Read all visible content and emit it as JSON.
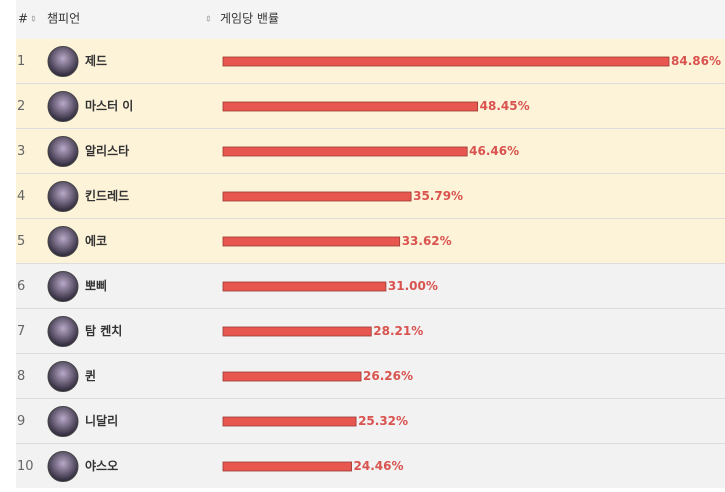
{
  "chart_data": {
    "type": "bar",
    "orientation": "horizontal",
    "headers": [
      "#",
      "챔피언",
      "게임당 밴률"
    ],
    "ranks": [
      1,
      2,
      3,
      4,
      5,
      6,
      7,
      8,
      9,
      10
    ],
    "categories": [
      "제드",
      "마스터 이",
      "알리스타",
      "킨드레드",
      "에코",
      "뽀삐",
      "탐 켄치",
      "퀸",
      "니달리",
      "야스오"
    ],
    "values": [
      84.86,
      48.45,
      46.46,
      35.79,
      33.62,
      31.0,
      28.21,
      26.26,
      25.32,
      24.46
    ],
    "value_labels": [
      "84.86%",
      "48.45%",
      "46.46%",
      "35.79%",
      "33.62%",
      "31.00%",
      "28.21%",
      "26.26%",
      "25.32%",
      "24.46%"
    ],
    "color": "#e8574f"
  }
}
